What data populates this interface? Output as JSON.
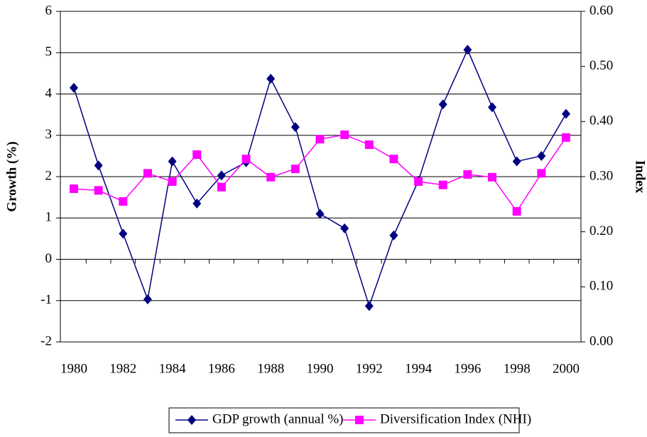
{
  "chart_data": {
    "type": "line",
    "ylabel": "Growth (%)",
    "y2label": "Index",
    "categories": [
      "1980",
      null,
      "1982",
      null,
      "1984",
      null,
      "1986",
      null,
      "1988",
      null,
      "1990",
      null,
      "1992",
      null,
      "1994",
      null,
      "1996",
      null,
      "1998",
      null,
      "2000"
    ],
    "series": [
      {
        "name": "GDP growth (annual %)",
        "color": "#000080",
        "marker": "diamond",
        "values": [
          4.15,
          2.27,
          0.62,
          -0.97,
          2.37,
          1.35,
          2.03,
          2.35,
          4.37,
          3.2,
          1.1,
          0.75,
          -1.13,
          0.58,
          1.9,
          3.75,
          5.07,
          3.68,
          2.37,
          2.5,
          3.52
        ]
      },
      {
        "name": "Diversification Index (NHI)",
        "color": "#ff00ff",
        "marker": "square",
        "axis": "y2",
        "values": [
          0.278,
          0.275,
          0.255,
          0.306,
          0.291,
          0.34,
          0.281,
          0.332,
          0.299,
          0.314,
          0.368,
          0.376,
          0.358,
          0.332,
          0.291,
          0.285,
          0.304,
          0.299,
          0.237,
          0.306,
          0.371
        ]
      }
    ],
    "ylim": [
      -2,
      6
    ],
    "yticks": [
      -2,
      -1,
      0,
      1,
      2,
      3,
      4,
      5,
      6
    ],
    "y2lim": [
      0,
      0.6
    ],
    "y2ticks": [
      {
        "value": 0,
        "label": "0.00"
      },
      {
        "value": 0.1,
        "label": "0.10"
      },
      {
        "value": 0.2,
        "label": "0.20"
      },
      {
        "value": 0.3,
        "label": "0.30"
      },
      {
        "value": 0.4,
        "label": "0.40"
      },
      {
        "value": 0.5,
        "label": "0.50"
      },
      {
        "value": 0.6,
        "label": "0.60"
      }
    ],
    "grid": true,
    "legend": "bottom"
  }
}
